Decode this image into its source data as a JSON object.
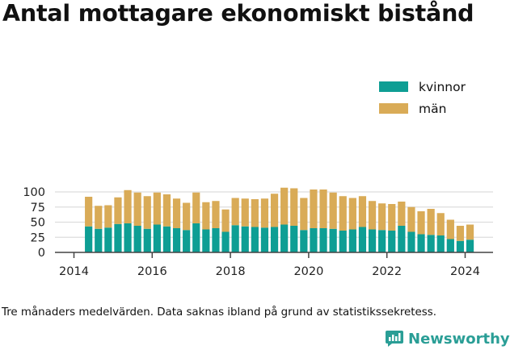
{
  "title": "Antal mottagare ekonomiskt bistånd",
  "footnote": "Tre månaders medelvärden. Data saknas ibland på grund av statistikssekretess.",
  "brand": {
    "name": "Newsworthy",
    "icon": "newsworthy-logo-icon",
    "color": "#2a9e96"
  },
  "colors": {
    "kvinnor": "#0e9e94",
    "man": "#d9ab57",
    "grid": "#dddddd",
    "axis": "#444444"
  },
  "chart_data": {
    "type": "bar",
    "stacked": true,
    "x": [
      "2014-Q2",
      "2014-Q3",
      "2014-Q4",
      "2015-Q1",
      "2015-Q2",
      "2015-Q3",
      "2015-Q4",
      "2016-Q1",
      "2016-Q2",
      "2016-Q3",
      "2016-Q4",
      "2017-Q1",
      "2017-Q2",
      "2017-Q3",
      "2017-Q4",
      "2018-Q1",
      "2018-Q2",
      "2018-Q3",
      "2018-Q4",
      "2019-Q1",
      "2019-Q2",
      "2019-Q3",
      "2019-Q4",
      "2020-Q1",
      "2020-Q2",
      "2020-Q3",
      "2020-Q4",
      "2021-Q1",
      "2021-Q2",
      "2021-Q3",
      "2021-Q4",
      "2022-Q1",
      "2022-Q2",
      "2022-Q3",
      "2022-Q4",
      "2023-Q1",
      "2023-Q2",
      "2023-Q3",
      "2023-Q4",
      "2024-Q1"
    ],
    "series": [
      {
        "name": "kvinnor",
        "values": [
          43,
          39,
          41,
          47,
          48,
          44,
          39,
          46,
          43,
          40,
          37,
          48,
          38,
          40,
          34,
          45,
          43,
          42,
          41,
          42,
          46,
          44,
          37,
          40,
          40,
          39,
          36,
          38,
          42,
          38,
          37,
          36,
          44,
          34,
          30,
          29,
          28,
          22,
          19,
          21
        ]
      },
      {
        "name": "män",
        "values": [
          49,
          38,
          37,
          44,
          55,
          55,
          54,
          53,
          53,
          49,
          45,
          51,
          45,
          45,
          37,
          45,
          46,
          46,
          48,
          55,
          61,
          62,
          53,
          64,
          64,
          60,
          57,
          52,
          51,
          47,
          44,
          44,
          40,
          41,
          38,
          43,
          37,
          32,
          25,
          25
        ]
      }
    ],
    "x_ticks": [
      "2014",
      "2016",
      "2018",
      "2020",
      "2022",
      "2024"
    ],
    "y_ticks": [
      0,
      25,
      50,
      75,
      100
    ],
    "ylim": [
      0,
      110
    ],
    "xlabel": "",
    "ylabel": "",
    "grid": true,
    "legend": "top-right"
  }
}
